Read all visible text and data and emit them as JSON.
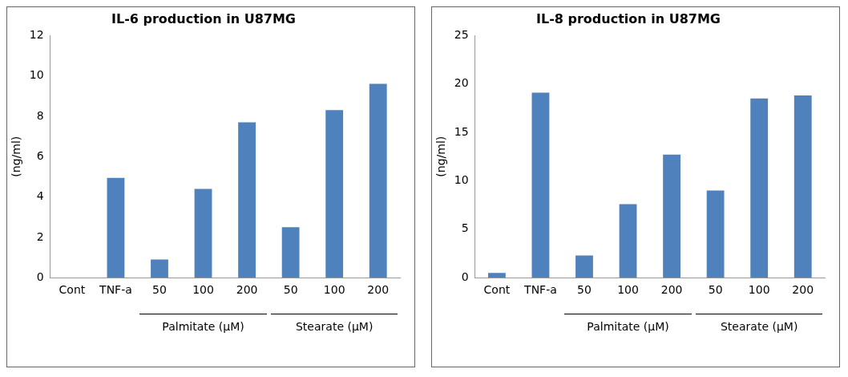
{
  "chart_data": [
    {
      "type": "bar",
      "title": "IL-6 production in U87MG",
      "ylabel": "(ng/ml)",
      "categories": [
        "Cont",
        "TNF-a",
        "50",
        "100",
        "200",
        "50",
        "100",
        "200"
      ],
      "values": [
        0,
        4.95,
        0.9,
        4.4,
        7.7,
        2.5,
        8.3,
        9.6
      ],
      "color": "#4f81bd",
      "ylim": [
        0,
        12
      ],
      "yticks": [
        0,
        2,
        4,
        6,
        8,
        10,
        12
      ],
      "grid": false,
      "legend": false,
      "annotations": [
        "Palmitate (μM)",
        "Stearate (μM)"
      ]
    },
    {
      "type": "bar",
      "title": "IL-8 production in U87MG",
      "ylabel": "(ng/ml)",
      "categories": [
        "Cont",
        "TNF-a",
        "50",
        "100",
        "200",
        "50",
        "100",
        "200"
      ],
      "values": [
        0.5,
        19.1,
        2.3,
        7.6,
        12.7,
        9.0,
        18.5,
        18.8
      ],
      "color": "#4f81bd",
      "ylim": [
        0,
        25
      ],
      "yticks": [
        0,
        5,
        10,
        15,
        20,
        25
      ],
      "grid": false,
      "legend": false,
      "annotations": [
        "Palmitate (μM)",
        "Stearate (μM)"
      ]
    }
  ]
}
